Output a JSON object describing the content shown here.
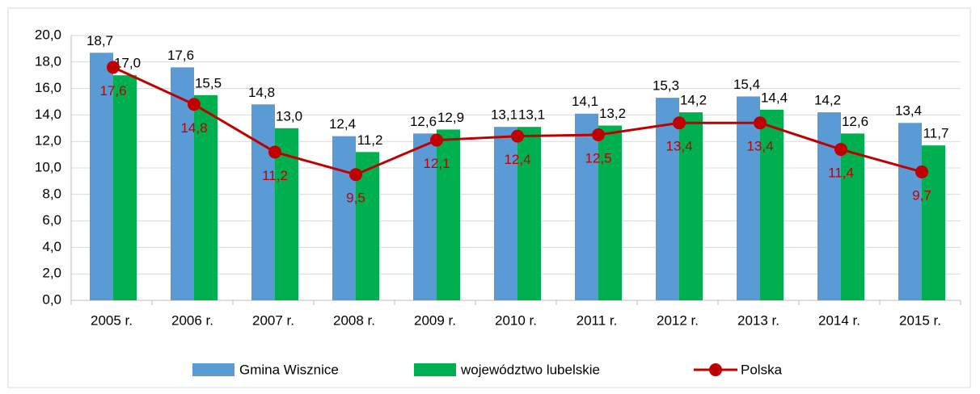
{
  "chart_data": {
    "type": "bar",
    "categories": [
      "2005 r.",
      "2006 r.",
      "2007 r.",
      "2008 r.",
      "2009 r.",
      "2010 r.",
      "2011 r.",
      "2012 r.",
      "2013 r.",
      "2014 r.",
      "2015 r."
    ],
    "series": [
      {
        "name": "Gmina Wisznice",
        "color": "#5b9bd5",
        "type": "bar",
        "values": [
          18.7,
          17.6,
          14.8,
          12.4,
          12.6,
          13.1,
          14.1,
          15.3,
          15.4,
          14.2,
          13.4
        ],
        "value_labels": [
          "18,7",
          "17,6",
          "14,8",
          "12,4",
          "12,6",
          "13,1",
          "14,1",
          "15,3",
          "15,4",
          "14,2",
          "13,4"
        ]
      },
      {
        "name": "województwo lubelskie",
        "color": "#00b050",
        "type": "bar",
        "values": [
          17.0,
          15.5,
          13.0,
          11.2,
          12.9,
          13.1,
          13.2,
          14.2,
          14.4,
          12.6,
          11.7
        ],
        "value_labels": [
          "17,0",
          "15,5",
          "13,0",
          "11,2",
          "12,9",
          "13,1",
          "13,2",
          "14,2",
          "14,4",
          "12,6",
          "11,7"
        ]
      },
      {
        "name": "Polska",
        "color": "#c00000",
        "type": "line",
        "values": [
          17.6,
          14.8,
          11.2,
          9.5,
          12.1,
          12.4,
          12.5,
          13.4,
          13.4,
          11.4,
          9.7
        ],
        "value_labels": [
          "17,6",
          "14,8",
          "11,2",
          "9,5",
          "12,1",
          "12,4",
          "12,5",
          "13,4",
          "13,4",
          "11,4",
          "9,7"
        ]
      }
    ],
    "ylim": [
      0,
      20
    ],
    "yticks": [
      {
        "value": 0,
        "label": "0,0"
      },
      {
        "value": 2,
        "label": "2,0"
      },
      {
        "value": 4,
        "label": "4,0"
      },
      {
        "value": 6,
        "label": "6,0"
      },
      {
        "value": 8,
        "label": "8,0"
      },
      {
        "value": 10,
        "label": "10,0"
      },
      {
        "value": 12,
        "label": "12,0"
      },
      {
        "value": 14,
        "label": "14,0"
      },
      {
        "value": 16,
        "label": "16,0"
      },
      {
        "value": 18,
        "label": "18,0"
      },
      {
        "value": 20,
        "label": "20,0"
      }
    ],
    "grid": true,
    "legend": "bottom"
  }
}
